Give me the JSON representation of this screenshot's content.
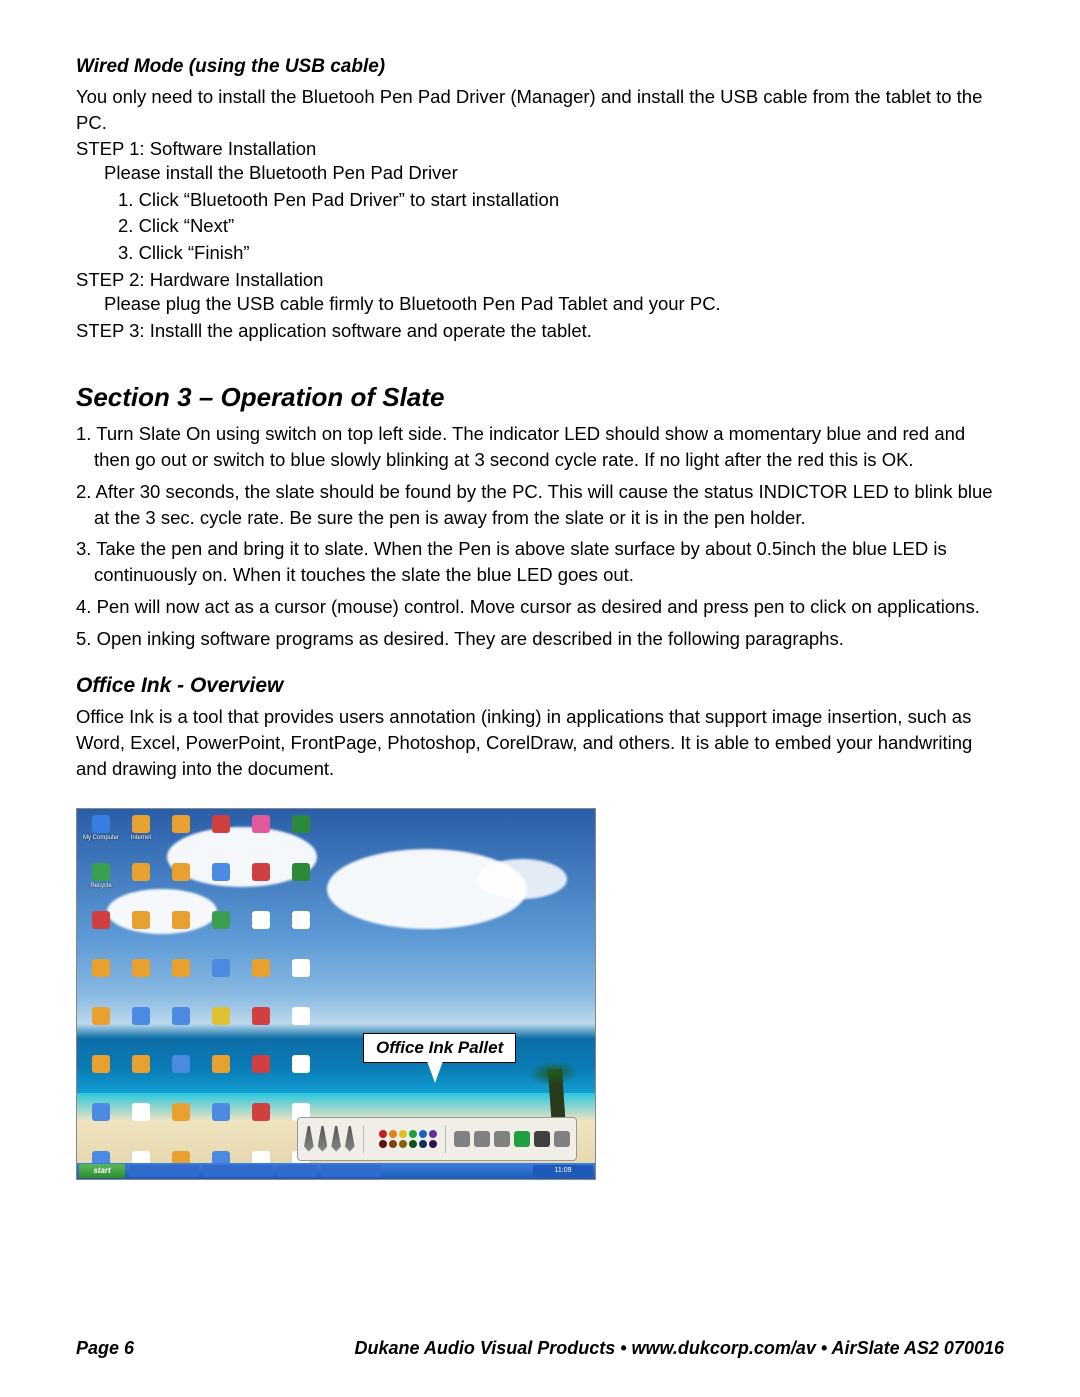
{
  "wired_heading": "Wired Mode (using the USB cable)",
  "wired_intro": "You only need to install the Bluetooh Pen Pad Driver (Manager) and install the USB cable from the tablet to the PC.",
  "step1_label": "STEP 1:  Software Installation",
  "step1_line1": "Please install the Bluetooth Pen Pad Driver",
  "step1_1": "1.  Click “Bluetooth Pen Pad Driver” to start installation",
  "step1_2": "2.  Click “Next”",
  "step1_3": "3.  Cllick “Finish”",
  "step2_label": "STEP 2:  Hardware Installation",
  "step2_line1": "Please plug the USB cable firmly to Bluetooth Pen Pad Tablet and your PC.",
  "step3_label": "STEP 3:  Installl the application software and operate the tablet.",
  "section_heading": "Section 3 – Operation of Slate",
  "op1": "1. Turn Slate On using switch on top left side.  The indicator LED should show a momentary blue and red and then go out or switch to blue slowly blinking at 3 second cycle rate.  If no light after the red this is OK.",
  "op2": "2. After 30 seconds, the slate should be found by the PC. This will cause the status INDICTOR LED to blink blue at the 3 sec. cycle rate. Be sure the pen is away from the slate or it is in the pen holder.",
  "op3": "3. Take the pen and bring it to slate. When the Pen is above slate surface by about 0.5inch the blue LED is continuously on. When it touches the slate the blue LED goes out.",
  "op4": "4. Pen will now act as a cursor (mouse) control. Move cursor as desired and press pen to click on applications.",
  "op5": "5. Open inking software programs as desired. They are described in the following paragraphs.",
  "office_heading": "Office Ink - Overview",
  "office_para": "Office Ink is a tool that provides users annotation (inking) in applications that support image insertion, such as Word, Excel, PowerPoint, FrontPage, Photoshop, CorelDraw, and others. It is able to embed your handwriting and drawing into the document.",
  "callout": "Office Ink Pallet",
  "desktop_icons": [
    {
      "label": "My Computer",
      "color": "#3a7de0"
    },
    {
      "label": "Internet",
      "color": "#e8a030"
    },
    {
      "label": "",
      "color": "#e8a030"
    },
    {
      "label": "",
      "color": "#d04040"
    },
    {
      "label": "",
      "color": "#e05a9a"
    },
    {
      "label": "",
      "color": "#2a8a3a"
    },
    {
      "label": "Recycle",
      "color": "#3aa050"
    },
    {
      "label": "",
      "color": "#e8a030"
    },
    {
      "label": "",
      "color": "#e8a030"
    },
    {
      "label": "",
      "color": "#4a8ae0"
    },
    {
      "label": "",
      "color": "#d04040"
    },
    {
      "label": "",
      "color": "#2a8a3a"
    },
    {
      "label": "",
      "color": "#d04040"
    },
    {
      "label": "",
      "color": "#e8a030"
    },
    {
      "label": "",
      "color": "#e8a030"
    },
    {
      "label": "",
      "color": "#3aa050"
    },
    {
      "label": "",
      "color": "#ffffff"
    },
    {
      "label": "",
      "color": "#ffffff"
    },
    {
      "label": "",
      "color": "#e8a030"
    },
    {
      "label": "",
      "color": "#e8a030"
    },
    {
      "label": "",
      "color": "#e8a030"
    },
    {
      "label": "",
      "color": "#4a8ae0"
    },
    {
      "label": "",
      "color": "#e8a030"
    },
    {
      "label": "",
      "color": "#ffffff"
    },
    {
      "label": "",
      "color": "#e8a030"
    },
    {
      "label": "",
      "color": "#4a8ae0"
    },
    {
      "label": "",
      "color": "#4a8ae0"
    },
    {
      "label": "",
      "color": "#e0c030"
    },
    {
      "label": "",
      "color": "#d04040"
    },
    {
      "label": "",
      "color": "#ffffff"
    },
    {
      "label": "",
      "color": "#e8a030"
    },
    {
      "label": "",
      "color": "#e8a030"
    },
    {
      "label": "",
      "color": "#4a8ae0"
    },
    {
      "label": "",
      "color": "#e8a030"
    },
    {
      "label": "",
      "color": "#d04040"
    },
    {
      "label": "",
      "color": "#ffffff"
    },
    {
      "label": "",
      "color": "#4a8ae0"
    },
    {
      "label": "",
      "color": "#ffffff"
    },
    {
      "label": "",
      "color": "#e8a030"
    },
    {
      "label": "",
      "color": "#4a8ae0"
    },
    {
      "label": "",
      "color": "#d04040"
    },
    {
      "label": "",
      "color": "#ffffff"
    },
    {
      "label": "",
      "color": "#4a8ae0"
    },
    {
      "label": "",
      "color": "#ffffff"
    },
    {
      "label": "",
      "color": "#e8a030"
    },
    {
      "label": "",
      "color": "#4a8ae0"
    },
    {
      "label": "",
      "color": "#ffffff"
    },
    {
      "label": "",
      "color": "#ffffff"
    },
    {
      "label": "",
      "color": "#e8a030"
    },
    {
      "label": "",
      "color": "#4a8ae0"
    },
    {
      "label": "",
      "color": "#e8a030"
    },
    {
      "label": "",
      "color": "#4a8ae0"
    }
  ],
  "start_label": "start",
  "tray_time": "11:09",
  "ink_dot_colors_row1": [
    "#c02020",
    "#e08020",
    "#e0c020",
    "#20a040",
    "#2060c0",
    "#6030a0"
  ],
  "ink_dot_colors_row2": [
    "#601010",
    "#804010",
    "#806010",
    "#105020",
    "#103060",
    "#301050"
  ],
  "ink_tools": [
    {
      "color": "#808080"
    },
    {
      "color": "#808080"
    },
    {
      "color": "#808080"
    },
    {
      "color": "#20a040"
    },
    {
      "color": "#404040"
    },
    {
      "color": "#808080"
    }
  ],
  "footer_left": "Page 6",
  "footer_right": "Dukane Audio Visual Products • www.dukcorp.com/av • AirSlate AS2 070016"
}
